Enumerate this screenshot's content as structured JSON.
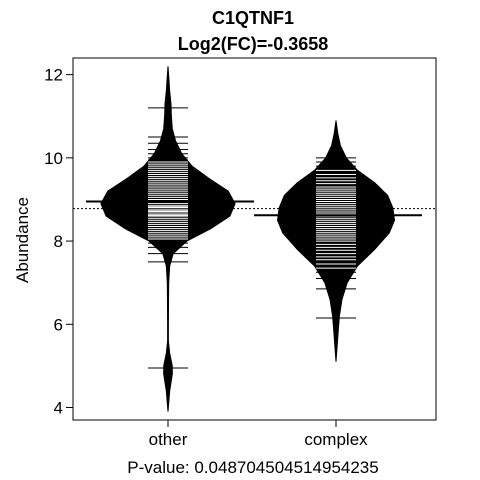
{
  "chart_data": {
    "type": "beanplot",
    "title": "C1QTNF1",
    "subtitle": "Log2(FC)=-0.3658",
    "ylabel": "Abundance",
    "xlabel": "P-value: 0.048704504514954235",
    "ylim": [
      3.7,
      12.4
    ],
    "yticks": [
      4,
      6,
      8,
      10,
      12
    ],
    "categories": [
      "other",
      "complex"
    ],
    "overall_mean": 8.78,
    "grid": false,
    "colors": {
      "bean": "#000000",
      "lines": "#ffffff",
      "background": "#ffffff"
    },
    "groups": [
      {
        "name": "other",
        "mean": 8.95,
        "density": [
          [
            3.9,
            0.0
          ],
          [
            4.4,
            0.02
          ],
          [
            4.8,
            0.05
          ],
          [
            5.0,
            0.05
          ],
          [
            5.3,
            0.02
          ],
          [
            5.6,
            0.005
          ],
          [
            6.0,
            0.005
          ],
          [
            6.5,
            0.006
          ],
          [
            7.0,
            0.008
          ],
          [
            7.4,
            0.02
          ],
          [
            7.7,
            0.06
          ],
          [
            8.0,
            0.22
          ],
          [
            8.3,
            0.5
          ],
          [
            8.6,
            0.72
          ],
          [
            8.9,
            0.78
          ],
          [
            9.2,
            0.7
          ],
          [
            9.5,
            0.48
          ],
          [
            9.8,
            0.28
          ],
          [
            10.1,
            0.16
          ],
          [
            10.4,
            0.09
          ],
          [
            10.7,
            0.05
          ],
          [
            11.0,
            0.04
          ],
          [
            11.3,
            0.035
          ],
          [
            11.6,
            0.02
          ],
          [
            11.9,
            0.01
          ],
          [
            12.2,
            0.0
          ]
        ],
        "values": [
          4.95,
          7.5,
          7.7,
          7.85,
          7.95,
          8.05,
          8.1,
          8.15,
          8.2,
          8.25,
          8.3,
          8.35,
          8.4,
          8.45,
          8.5,
          8.55,
          8.6,
          8.62,
          8.65,
          8.7,
          8.72,
          8.75,
          8.8,
          8.82,
          8.85,
          8.9,
          8.95,
          9.0,
          9.05,
          9.1,
          9.15,
          9.2,
          9.25,
          9.3,
          9.35,
          9.4,
          9.45,
          9.5,
          9.55,
          9.6,
          9.65,
          9.7,
          9.75,
          9.8,
          9.85,
          9.9,
          9.95,
          10.0,
          10.1,
          10.2,
          10.35,
          10.5,
          11.2
        ]
      },
      {
        "name": "complex",
        "mean": 8.62,
        "density": [
          [
            5.1,
            0.0
          ],
          [
            5.4,
            0.01
          ],
          [
            5.8,
            0.025
          ],
          [
            6.2,
            0.04
          ],
          [
            6.6,
            0.07
          ],
          [
            7.0,
            0.13
          ],
          [
            7.4,
            0.25
          ],
          [
            7.8,
            0.45
          ],
          [
            8.2,
            0.62
          ],
          [
            8.5,
            0.68
          ],
          [
            8.8,
            0.66
          ],
          [
            9.1,
            0.6
          ],
          [
            9.4,
            0.45
          ],
          [
            9.7,
            0.25
          ],
          [
            10.0,
            0.12
          ],
          [
            10.3,
            0.05
          ],
          [
            10.6,
            0.02
          ],
          [
            10.9,
            0.0
          ]
        ],
        "values": [
          6.15,
          6.85,
          7.1,
          7.25,
          7.35,
          7.45,
          7.55,
          7.62,
          7.7,
          7.78,
          7.85,
          7.92,
          8.0,
          8.05,
          8.1,
          8.15,
          8.2,
          8.25,
          8.3,
          8.35,
          8.4,
          8.45,
          8.5,
          8.55,
          8.6,
          8.65,
          8.7,
          8.75,
          8.8,
          8.85,
          8.9,
          8.95,
          9.0,
          9.05,
          9.1,
          9.15,
          9.2,
          9.25,
          9.3,
          9.38,
          9.45,
          9.52,
          9.6,
          9.7,
          9.8,
          9.9,
          10.0
        ]
      }
    ]
  }
}
